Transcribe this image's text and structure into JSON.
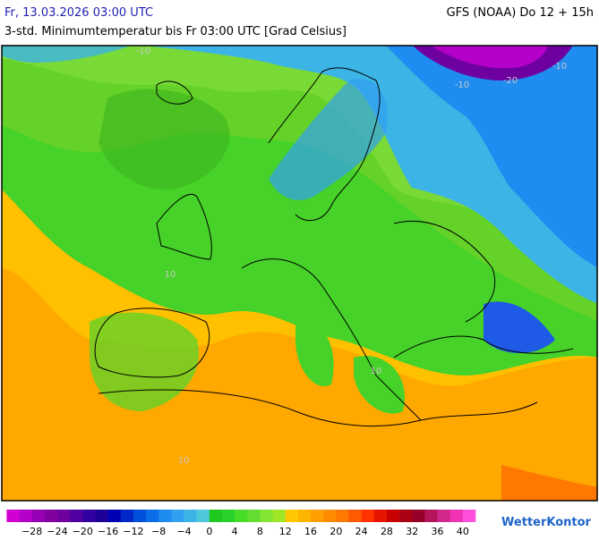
{
  "header": {
    "date": "Fr, 13.03.2026 03:00 UTC",
    "model": "GFS (NOAA) Do 12 + 15h",
    "subtitle": "3-std. Minimumtemperatur bis Fr 03:00 UTC [Grad Celsius]"
  },
  "map": {
    "contour_labels": [
      "-10",
      "-10",
      "-10",
      "-20",
      "10",
      "10",
      "10"
    ]
  },
  "legend": {
    "labels": [
      "−28",
      "−24",
      "−20",
      "−16",
      "−12",
      "−8",
      "−4",
      "0",
      "4",
      "8",
      "12",
      "16",
      "20",
      "24",
      "28",
      "32",
      "36",
      "40"
    ],
    "colors": [
      "#d200d2",
      "#b400c8",
      "#9600b4",
      "#8200a0",
      "#6e00a0",
      "#5000a0",
      "#3200a0",
      "#1e0096",
      "#0000b4",
      "#0028c8",
      "#0050dc",
      "#0a6ee6",
      "#1e8cf0",
      "#32a0f0",
      "#3cb4e6",
      "#50c8dc",
      "#1ec81e",
      "#28d228",
      "#46dc28",
      "#64dc32",
      "#82e632",
      "#a0e628",
      "#ffc800",
      "#ffb400",
      "#ffa000",
      "#ff8c00",
      "#ff7800",
      "#ff5a00",
      "#ff3200",
      "#e61400",
      "#c80000",
      "#aa0014",
      "#960028",
      "#b4145a",
      "#d2288c",
      "#f032b4",
      "#ff50dc"
    ]
  },
  "logo": "WetterKontor"
}
